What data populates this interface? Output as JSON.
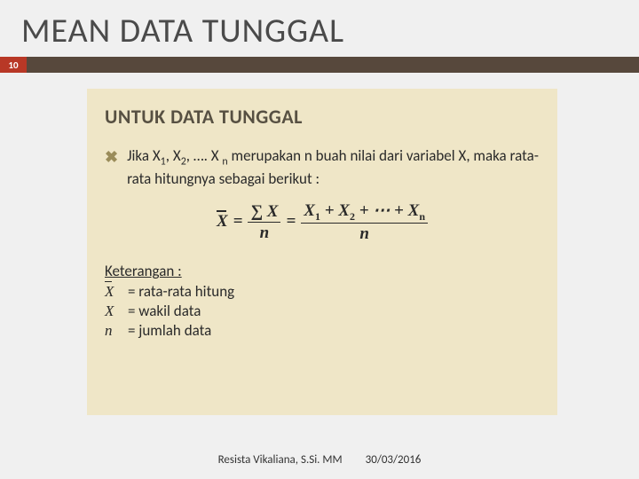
{
  "slide": {
    "title": "MEAN DATA TUNGGAL",
    "page_number": "10",
    "colors": {
      "background": "#f0f0f0",
      "divider": "#57483c",
      "page_box": "#b83826",
      "panel": "#efe6c7",
      "heading": "#575042",
      "bullet": "#9a8c5a",
      "text": "#2a2a2a"
    }
  },
  "panel": {
    "subtitle": "UNTUK DATA TUNGGAL",
    "bullet_marker": "✖",
    "bullet_text_pre": "Jika X",
    "bullet_sub1": "1",
    "bullet_text_mid1": ", X",
    "bullet_sub2": "2",
    "bullet_text_mid2": ", …. X ",
    "bullet_subn": "n",
    "bullet_text_post": " merupakan n buah nilai dari variabel X, maka rata-rata hitungnya sebagai berikut :",
    "formula": {
      "lhs_symbol": "X",
      "eq": "=",
      "frac1_num": "∑ X",
      "frac1_den": "n",
      "frac2_num_pre": "X",
      "s1": "1",
      "plus": " + ",
      "s2": "2",
      "dots": " + ⋯ + ",
      "sn": "n",
      "frac2_den": "n"
    },
    "keterangan": {
      "title": "Keterangan :",
      "row1_sym": "X",
      "row1_text": "= rata-rata hitung",
      "row2_sym": "X",
      "row2_text": "= wakil data",
      "row3_sym": "n",
      "row3_text": "= jumlah data"
    }
  },
  "footer": {
    "author": "Resista Vikaliana, S.Si. MM",
    "date": "30/03/2016"
  }
}
